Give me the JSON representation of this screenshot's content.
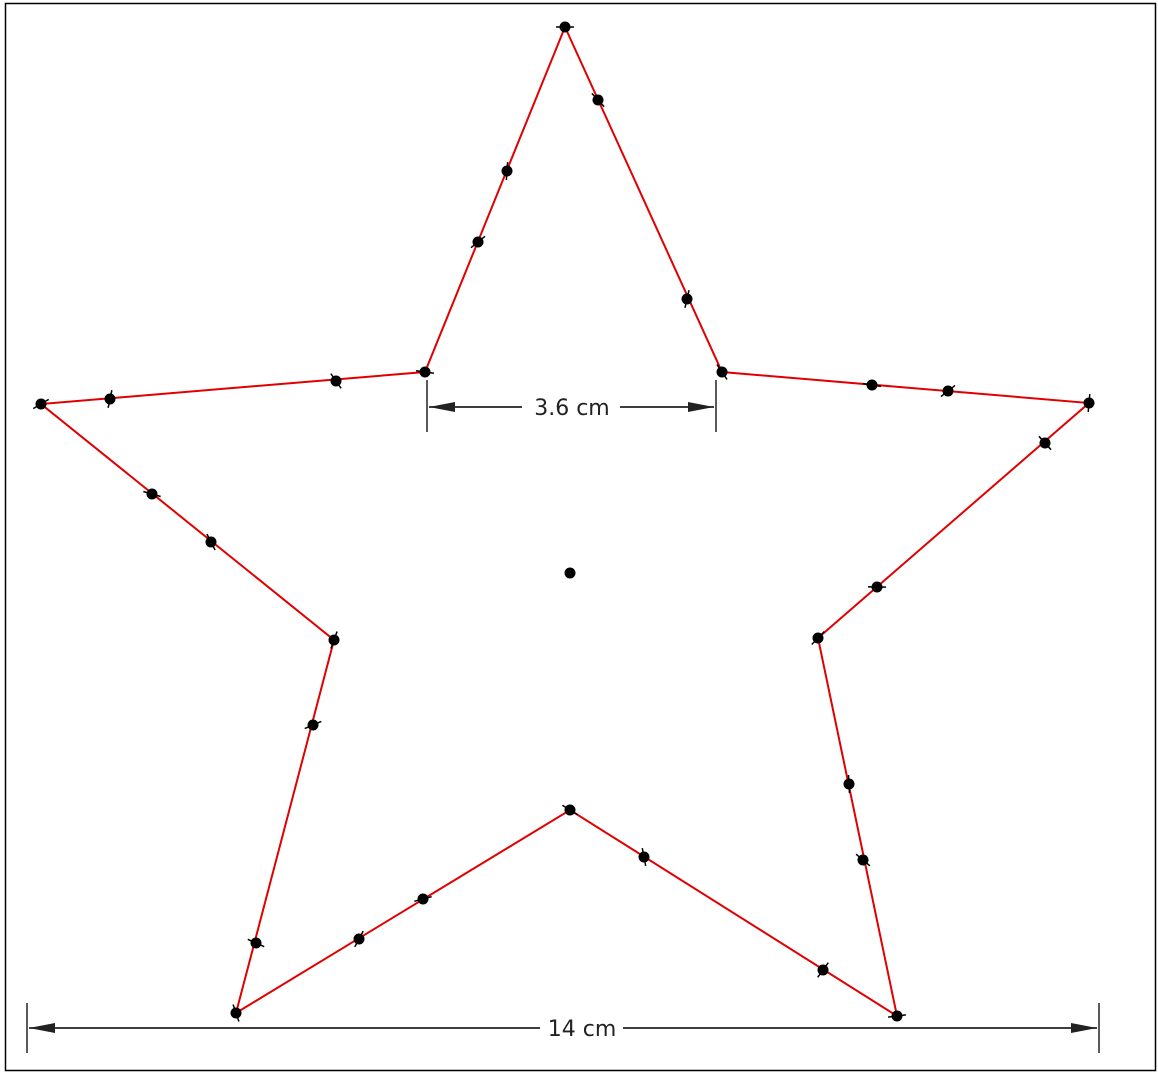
{
  "diagram": {
    "dimensions": {
      "inner_width_label": "3.6 cm",
      "total_width_label": "14 cm"
    },
    "colors": {
      "outline": "#e00000",
      "points": "#000000",
      "frame": "#000000",
      "dimension": "#222222"
    }
  }
}
